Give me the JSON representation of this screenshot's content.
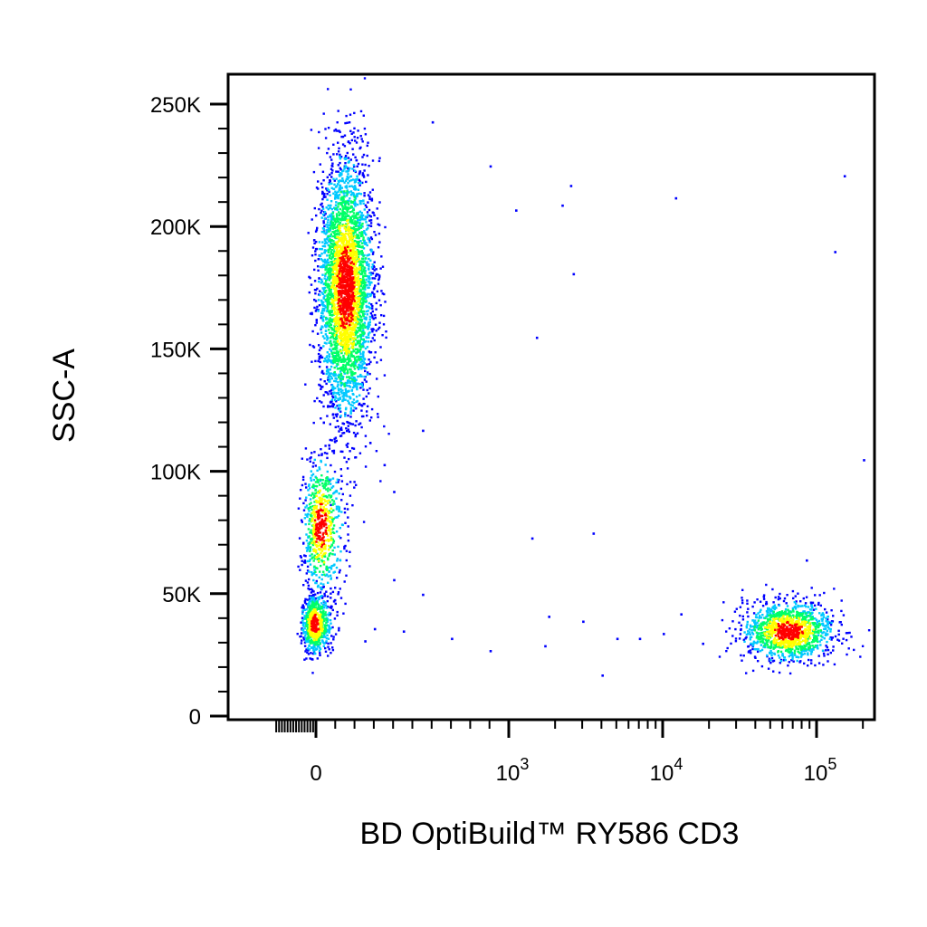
{
  "chart_data": {
    "type": "scatter",
    "subtype": "flow-cytometry-density-dot-plot",
    "xlabel": "BD OptiBuild™ RY586 CD3",
    "ylabel": "SSC-A",
    "x_scale": "biexponential",
    "y_scale": "linear",
    "xlim": [
      -300,
      200000
    ],
    "ylim": [
      -3000,
      262144
    ],
    "x_ticks": [
      {
        "value": 0,
        "label": "0"
      },
      {
        "value": 1000,
        "label": "10",
        "exp": "3"
      },
      {
        "value": 10000,
        "label": "10",
        "exp": "4"
      },
      {
        "value": 100000,
        "label": "10",
        "exp": "5"
      }
    ],
    "y_ticks": [
      {
        "value": 0,
        "label": "0"
      },
      {
        "value": 50000,
        "label": "50K"
      },
      {
        "value": 100000,
        "label": "100K"
      },
      {
        "value": 150000,
        "label": "150K"
      },
      {
        "value": 200000,
        "label": "200K"
      },
      {
        "value": 250000,
        "label": "250K"
      }
    ],
    "grid": false,
    "legend": "none",
    "color_scale": [
      "#0000ff",
      "#00c8ff",
      "#00ff66",
      "#ffff00",
      "#ff0000"
    ],
    "populations": [
      {
        "x_center": 150,
        "x_spread": 70,
        "y_center": 175000,
        "y_spread": 26000,
        "events": 3600
      },
      {
        "x_center": 20,
        "x_spread": 55,
        "y_center": 78000,
        "y_spread": 14000,
        "events": 700
      },
      {
        "x_center": -15,
        "x_spread": 45,
        "y_center": 38000,
        "y_spread": 6000,
        "events": 700
      },
      {
        "x_center": 65000,
        "x_spread": 22000,
        "y_center": 35000,
        "y_spread": 6000,
        "events": 1300
      }
    ],
    "scattered_events": [
      [
        600,
        243000
      ],
      [
        900,
        225000
      ],
      [
        1100,
        207000
      ],
      [
        2500,
        217000
      ],
      [
        2200,
        209000
      ],
      [
        2600,
        181000
      ],
      [
        12000,
        212000
      ],
      [
        150000,
        221000
      ],
      [
        130000,
        190000
      ],
      [
        1500,
        155000
      ],
      [
        200000,
        105000
      ],
      [
        550,
        117000
      ],
      [
        350,
        103000
      ],
      [
        400,
        92000
      ],
      [
        3500,
        75000
      ],
      [
        1400,
        73000
      ],
      [
        85000,
        64000
      ],
      [
        400,
        56000
      ],
      [
        550,
        50000
      ],
      [
        1800,
        41000
      ],
      [
        3000,
        39000
      ],
      [
        450,
        35000
      ],
      [
        900,
        27000
      ],
      [
        1700,
        29000
      ],
      [
        4000,
        17000
      ],
      [
        5000,
        32000
      ],
      [
        7000,
        32000
      ],
      [
        10000,
        34000
      ],
      [
        18000,
        30000
      ],
      [
        13000,
        42000
      ],
      [
        300,
        36000
      ],
      [
        250,
        31000
      ],
      [
        700,
        32000
      ]
    ]
  }
}
